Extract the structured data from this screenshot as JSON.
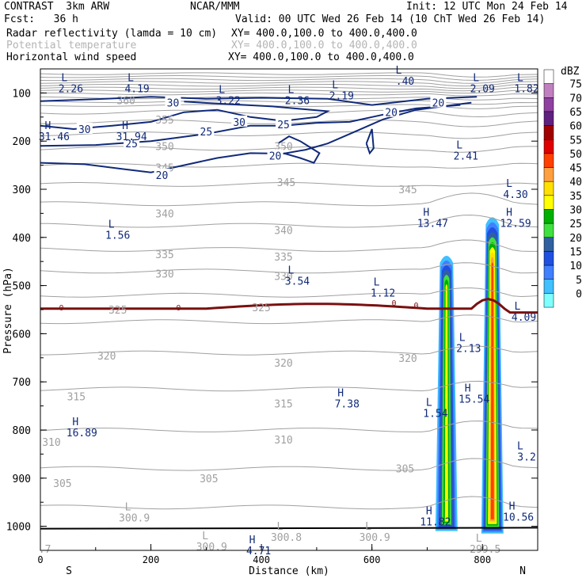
{
  "header": {
    "title": "CONTRAST  3km ARW",
    "fcst": "Fcst:   36 h",
    "center": "NCAR/MMM",
    "init": "Init: 12 UTC Mon 24 Feb 14",
    "valid": "Valid: 00 UTC Wed 26 Feb 14 (10 ChT Wed 26 Feb 14)",
    "field1": "Radar reflectivity (lamda = 10 cm)",
    "field1_xy": "XY= 400.0,100.0 to 400.0,400.0",
    "field2": "Potential temperature",
    "field2_xy": "XY= 400.0,100.0 to 400.0,400.0",
    "field3": "Horizontal wind speed",
    "field3_xy": "XY= 400.0,100.0 to 400.0,400.0"
  },
  "colors": {
    "wind": "#102a7a",
    "theta": "#a0a0a0",
    "freezing": "#7a1010",
    "ground": "#000000"
  },
  "chart_data": {
    "type": "cross-section",
    "xlabel": "Distance (km)",
    "ylabel": "Pressure (hPa)",
    "xlim": [
      0,
      900
    ],
    "ylim": [
      1050,
      50
    ],
    "x_ticks": [
      "0",
      "200",
      "400",
      "600",
      "800"
    ],
    "x_tick_values": [
      0,
      200,
      400,
      600,
      800
    ],
    "y_ticks": [
      "100",
      "200",
      "300",
      "400",
      "500",
      "600",
      "700",
      "800",
      "900",
      "1000"
    ],
    "y_tick_values": [
      100,
      200,
      300,
      400,
      500,
      600,
      700,
      800,
      900,
      1000
    ],
    "x_end_labels": {
      "left": "S",
      "right": "N"
    },
    "colorbar": {
      "title": "dBZ",
      "labels": [
        "75",
        "70",
        "65",
        "60",
        "55",
        "50",
        "45",
        "40",
        "35",
        "30",
        "25",
        "20",
        "15",
        "10",
        "5",
        "0"
      ],
      "colors": [
        "#ffffff",
        "#c080c0",
        "#9040a0",
        "#602080",
        "#a00000",
        "#e00000",
        "#ff4000",
        "#ffa040",
        "#ffe000",
        "#ffff00",
        "#00b000",
        "#40e040",
        "#3060a0",
        "#2050e0",
        "#4080ff",
        "#40c0ff",
        "#80ffff"
      ]
    },
    "theta_labels": [
      {
        "text": "360",
        "x": 155,
        "p": 115
      },
      {
        "text": "355",
        "x": 225,
        "p": 155
      },
      {
        "text": "350",
        "x": 225,
        "p": 210
      },
      {
        "text": "350",
        "x": 440,
        "p": 210
      },
      {
        "text": "345",
        "x": 225,
        "p": 255
      },
      {
        "text": "345",
        "x": 445,
        "p": 285
      },
      {
        "text": "345",
        "x": 665,
        "p": 300
      },
      {
        "text": "340",
        "x": 225,
        "p": 350
      },
      {
        "text": "340",
        "x": 440,
        "p": 385
      },
      {
        "text": "335",
        "x": 225,
        "p": 435
      },
      {
        "text": "335",
        "x": 440,
        "p": 440
      },
      {
        "text": "330",
        "x": 225,
        "p": 475
      },
      {
        "text": "330",
        "x": 440,
        "p": 480
      },
      {
        "text": "325",
        "x": 140,
        "p": 550
      },
      {
        "text": "325",
        "x": 400,
        "p": 545
      },
      {
        "text": "320",
        "x": 120,
        "p": 645
      },
      {
        "text": "320",
        "x": 440,
        "p": 660
      },
      {
        "text": "320",
        "x": 665,
        "p": 650
      },
      {
        "text": "315",
        "x": 65,
        "p": 730
      },
      {
        "text": "315",
        "x": 440,
        "p": 745
      },
      {
        "text": "310",
        "x": 20,
        "p": 825
      },
      {
        "text": "310",
        "x": 440,
        "p": 820
      },
      {
        "text": "305",
        "x": 40,
        "p": 910
      },
      {
        "text": "305",
        "x": 305,
        "p": 900
      },
      {
        "text": "305",
        "x": 660,
        "p": 880
      }
    ],
    "wind_labels": [
      {
        "text": "30",
        "x": 80,
        "p": 175
      },
      {
        "text": "30",
        "x": 240,
        "p": 120
      },
      {
        "text": "30",
        "x": 360,
        "p": 160
      },
      {
        "text": "25",
        "x": 165,
        "p": 205
      },
      {
        "text": "25",
        "x": 300,
        "p": 180
      },
      {
        "text": "25",
        "x": 440,
        "p": 165
      },
      {
        "text": "20",
        "x": 220,
        "p": 270
      },
      {
        "text": "20",
        "x": 425,
        "p": 230
      },
      {
        "text": "20",
        "x": 635,
        "p": 140
      },
      {
        "text": "20",
        "x": 720,
        "p": 120
      }
    ],
    "hl_labels": [
      {
        "letter": "L",
        "value": "2.26",
        "x": 55,
        "p": 85
      },
      {
        "letter": "L",
        "value": "4.19",
        "x": 175,
        "p": 85
      },
      {
        "letter": "L",
        "value": "3.22",
        "x": 340,
        "p": 110
      },
      {
        "letter": "L",
        "value": "2.36",
        "x": 465,
        "p": 110
      },
      {
        "letter": "L",
        "value": "2.19",
        "x": 545,
        "p": 100
      },
      {
        "letter": "L",
        "value": ".40",
        "x": 660,
        "p": 70
      },
      {
        "letter": "L",
        "value": "2.09",
        "x": 800,
        "p": 85
      },
      {
        "letter": "L",
        "value": "1.82",
        "x": 880,
        "p": 85
      },
      {
        "letter": "H",
        "value": "31.46",
        "x": 25,
        "p": 185
      },
      {
        "letter": "H",
        "value": "31.94",
        "x": 165,
        "p": 185
      },
      {
        "letter": "L",
        "value": "2.41",
        "x": 770,
        "p": 225
      },
      {
        "letter": "L",
        "value": "4.30",
        "x": 860,
        "p": 305
      },
      {
        "letter": "H",
        "value": "13.47",
        "x": 710,
        "p": 365
      },
      {
        "letter": "H",
        "value": "12.59",
        "x": 860,
        "p": 365
      },
      {
        "letter": "L",
        "value": "1.56",
        "x": 140,
        "p": 390
      },
      {
        "letter": "L",
        "value": "3.54",
        "x": 465,
        "p": 485
      },
      {
        "letter": "L",
        "value": "1.12",
        "x": 620,
        "p": 510
      },
      {
        "letter": "L",
        "value": "4.09",
        "x": 875,
        "p": 560
      },
      {
        "letter": "L",
        "value": "2.13",
        "x": 775,
        "p": 625
      },
      {
        "letter": "H",
        "value": "15.54",
        "x": 785,
        "p": 730
      },
      {
        "letter": "H",
        "value": "7.38",
        "x": 555,
        "p": 740
      },
      {
        "letter": "L",
        "value": "1.54",
        "x": 715,
        "p": 760
      },
      {
        "letter": "H",
        "value": "16.89",
        "x": 75,
        "p": 800
      },
      {
        "letter": "L",
        "value": "3.2",
        "x": 880,
        "p": 850
      },
      {
        "letter": "H",
        "value": "11.82",
        "x": 715,
        "p": 985
      },
      {
        "letter": "H",
        "value": "10.56",
        "x": 865,
        "p": 975
      },
      {
        "letter": "H",
        "value": "4.71",
        "x": 395,
        "p": 1045
      }
    ],
    "theta_l_labels": [
      {
        "letter": "L",
        "value": "300.9",
        "x": 170,
        "p": 980
      },
      {
        "letter": "L",
        "value": "300.9",
        "x": 310,
        "p": 1040
      },
      {
        "letter": "L",
        "value": "300.8",
        "x": 445,
        "p": 1020
      },
      {
        "letter": "L",
        "value": "300.9",
        "x": 605,
        "p": 1020
      },
      {
        "letter": "L",
        "value": "299.5",
        "x": 805,
        "p": 1045
      },
      {
        "letter": "",
        "value": ".7",
        "x": 8,
        "p": 1045
      }
    ],
    "freezing_labels": [
      {
        "text": "0",
        "x": 38,
        "p": 545
      },
      {
        "text": "0",
        "x": 250,
        "p": 545
      },
      {
        "text": "0",
        "x": 640,
        "p": 535
      },
      {
        "text": "0",
        "x": 680,
        "p": 540
      }
    ],
    "echoes": [
      {
        "name": "cell-west",
        "x": 735,
        "top_p": 430,
        "bot_p": 1010,
        "max_dbz": 35
      },
      {
        "name": "cell-east",
        "x": 818,
        "top_p": 350,
        "bot_p": 1015,
        "max_dbz": 52
      }
    ]
  }
}
